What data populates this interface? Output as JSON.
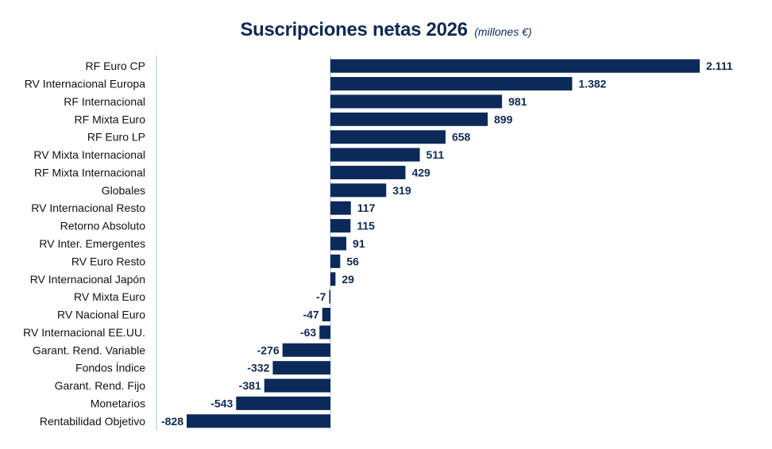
{
  "title": "Suscripciones netas 2026",
  "subtitle": "(millones €)",
  "colors": {
    "bar": "#0b2a5a",
    "axis_line": "#9ec3e6",
    "label": "#0f2a52"
  },
  "chart_data": {
    "type": "bar",
    "orientation": "horizontal",
    "title": "Suscripciones netas 2026",
    "subtitle": "(millones €)",
    "xlabel": "",
    "ylabel": "",
    "grid": false,
    "legend": "none",
    "xlim": [
      -828,
      2111
    ],
    "categories": [
      "RF Euro CP",
      "RV Internacional Europa",
      "RF Internacional",
      "RF Mixta Euro",
      "RF Euro LP",
      "RV Mixta Internacional",
      "RF Mixta Internacional",
      "Globales",
      "RV Internacional Resto",
      "Retorno Absoluto",
      "RV Inter. Emergentes",
      "RV Euro Resto",
      "RV Internacional Japón",
      "RV Mixta Euro",
      "RV Nacional Euro",
      "RV Internacional EE.UU.",
      "Garant. Rend. Variable",
      "Fondos Índice",
      "Garant. Rend. Fijo",
      "Monetarios",
      "Rentabilidad Objetivo"
    ],
    "values": [
      2111,
      1382,
      981,
      899,
      658,
      511,
      429,
      319,
      117,
      115,
      91,
      56,
      29,
      -7,
      -47,
      -63,
      -276,
      -332,
      -381,
      -543,
      -828
    ],
    "value_labels": [
      "2.111",
      "1.382",
      "981",
      "899",
      "658",
      "511",
      "429",
      "319",
      "117",
      "115",
      "91",
      "56",
      "29",
      "-7",
      "-47",
      "-63",
      "-276",
      "-332",
      "-381",
      "-543",
      "-828"
    ]
  }
}
